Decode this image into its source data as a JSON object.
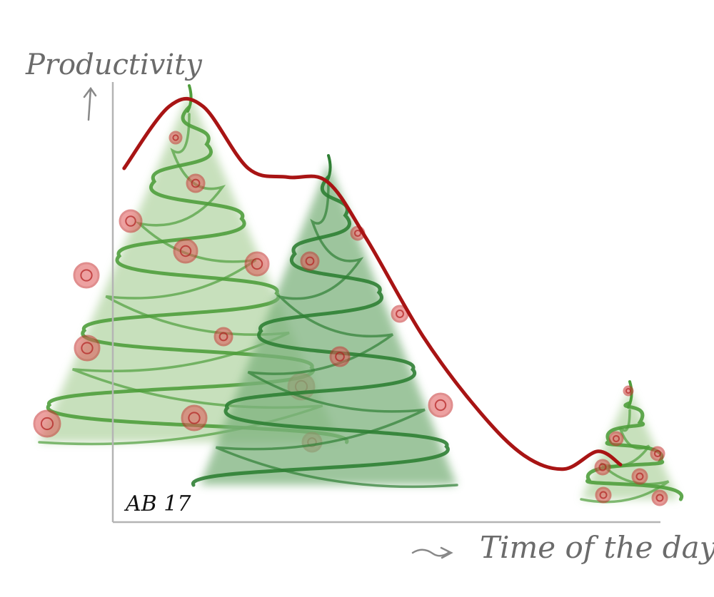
{
  "chart_data": {
    "type": "line",
    "title": "",
    "xlabel": "Time of the day",
    "ylabel": "Productivity",
    "signature": "AB 17",
    "x_scale": "unlabeled",
    "y_scale": "unlabeled",
    "grid": false,
    "series": [
      {
        "color": "#a81414",
        "points": [
          [
            0.02,
            0.8
          ],
          [
            0.1,
            0.94
          ],
          [
            0.16,
            0.94
          ],
          [
            0.24,
            0.8
          ],
          [
            0.31,
            0.78
          ],
          [
            0.38,
            0.77
          ],
          [
            0.45,
            0.64
          ],
          [
            0.55,
            0.42
          ],
          [
            0.65,
            0.25
          ],
          [
            0.73,
            0.15
          ],
          [
            0.8,
            0.12
          ],
          [
            0.86,
            0.16
          ],
          [
            0.9,
            0.13
          ]
        ]
      }
    ],
    "decorations": [
      {
        "kind": "tree",
        "color": "#4f9e3c",
        "fill": "#b5d6a6",
        "position": "left"
      },
      {
        "kind": "tree",
        "color": "#2f7f34",
        "fill": "#7db27d",
        "position": "middle"
      },
      {
        "kind": "tree",
        "color": "#4f9e3c",
        "fill": "#b5d6a6",
        "position": "right"
      }
    ]
  }
}
